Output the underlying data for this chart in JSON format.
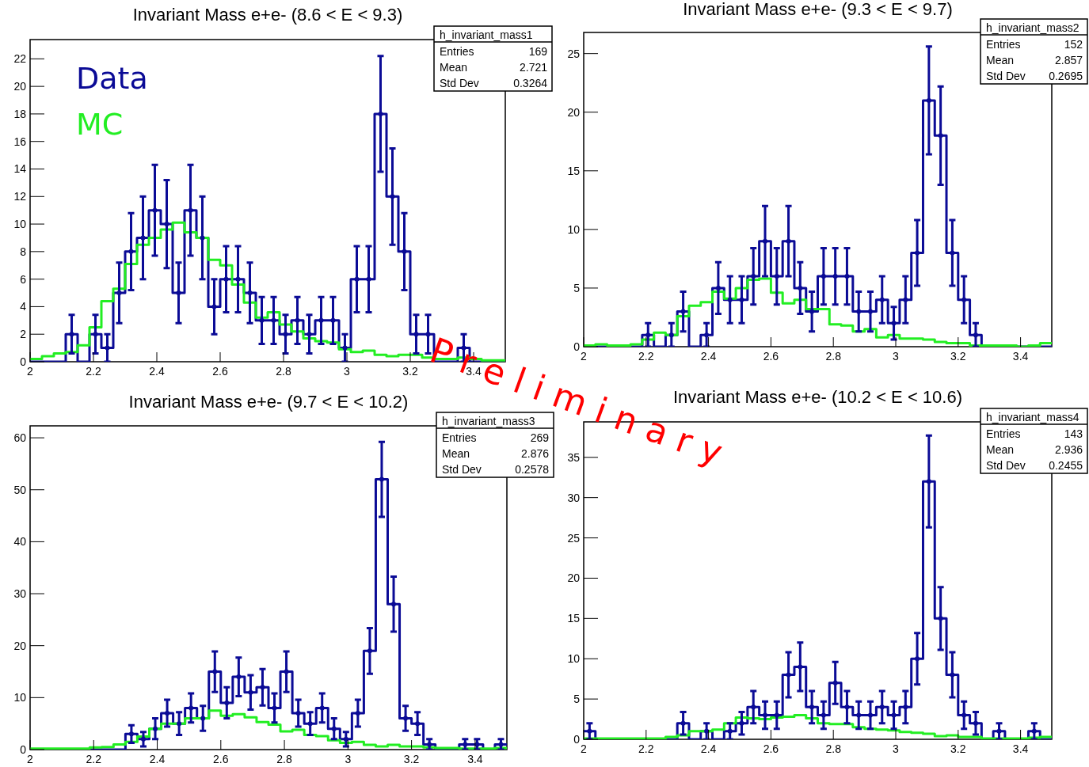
{
  "chart_data": [
    {
      "type": "histogram",
      "title": "Invariant Mass e+e- (8.6 < E < 9.3)",
      "bins": [
        2,
        2.0375,
        2.075,
        2.1125,
        2.15,
        2.1875,
        2.225,
        2.2625,
        2.3,
        2.3375,
        2.375,
        2.4125,
        2.45,
        2.4875,
        2.525,
        2.5625,
        2.6,
        2.6375,
        2.675,
        2.7125,
        2.75,
        2.7875,
        2.825,
        2.8625,
        2.9,
        2.9375,
        2.975,
        3.0125,
        3.05,
        3.0875,
        3.125,
        3.1625,
        3.2,
        3.2375,
        3.275,
        3.3125,
        3.35,
        3.3875,
        3.425,
        3.4625,
        3.5
      ],
      "xlim": [
        2,
        3.5
      ],
      "ylim": [
        0,
        23.4
      ],
      "xticks": [
        2,
        2.2,
        2.4,
        2.6,
        2.8,
        3,
        3.2,
        3.4
      ],
      "yticks": [
        0,
        2,
        4,
        6,
        8,
        10,
        12,
        14,
        16,
        18,
        20,
        22
      ],
      "legend": "top left",
      "series": [
        {
          "name": "Data",
          "color": "#0b0b96",
          "values": [
            0,
            0,
            0,
            2,
            0,
            2,
            1,
            5,
            8,
            9,
            11,
            10,
            5,
            11,
            9,
            4,
            6,
            6,
            5,
            3,
            3,
            2,
            3,
            2,
            3,
            3,
            1,
            6,
            6,
            18,
            12,
            8,
            2,
            2,
            0,
            0,
            1,
            0,
            0,
            0
          ]
        },
        {
          "type": "scatter",
          "color": "#0b0b96",
          "x": [
            2.13125,
            2.20625,
            2.24375,
            2.28125,
            2.31875,
            2.35625,
            2.39375,
            2.43125,
            2.46875,
            2.50625,
            2.54375,
            2.58125,
            2.61875,
            2.65625,
            2.69375,
            2.73125,
            2.76875,
            2.80625,
            2.84375,
            2.88125,
            2.91875,
            2.95625,
            2.99375,
            3.03125,
            3.06875,
            3.10625,
            3.14375,
            3.18125,
            3.21875,
            3.25625,
            3.36875
          ],
          "values": [
            2,
            2,
            1,
            5,
            8,
            9,
            11,
            10,
            5,
            11,
            9,
            4,
            6,
            6,
            5,
            3,
            3,
            2,
            3,
            2,
            3,
            3,
            1,
            6,
            6,
            18,
            12,
            8,
            2,
            2,
            1
          ],
          "errors": [
            1.4,
            1.4,
            1,
            2.2,
            2.8,
            3,
            3.3,
            3.2,
            2.2,
            3.3,
            3,
            2,
            2.4,
            2.4,
            2.2,
            1.7,
            1.7,
            1.4,
            1.7,
            1.4,
            1.7,
            1.7,
            1,
            2.4,
            2.4,
            4.2,
            3.5,
            2.8,
            1.4,
            1.4,
            1
          ]
        },
        {
          "name": "MC",
          "color": "#22ee22",
          "values": [
            0.2,
            0.4,
            0.6,
            0.7,
            1.2,
            2.5,
            4.4,
            5.3,
            7.1,
            8.5,
            9,
            9.6,
            10.1,
            9.4,
            9,
            7.4,
            7,
            5.6,
            4.3,
            3.2,
            3.6,
            2.7,
            2.2,
            1.7,
            1.5,
            1.4,
            0.9,
            0.7,
            0.8,
            0.5,
            0.4,
            0.5,
            0.5,
            0.3,
            0.2,
            0.2,
            0.3,
            0.2,
            0.1,
            0.1
          ]
        }
      ],
      "annotations": [
        "h_invariant_mass1",
        "Entries",
        "169",
        "Mean",
        "2.721",
        "Std Dev",
        "0.3264",
        "Preliminary"
      ]
    },
    {
      "type": "histogram",
      "title": "Invariant Mass e+e- (9.3 < E < 9.7)",
      "bins": [
        2,
        2.0375,
        2.075,
        2.1125,
        2.15,
        2.1875,
        2.225,
        2.2625,
        2.3,
        2.3375,
        2.375,
        2.4125,
        2.45,
        2.4875,
        2.525,
        2.5625,
        2.6,
        2.6375,
        2.675,
        2.7125,
        2.75,
        2.7875,
        2.825,
        2.8625,
        2.9,
        2.9375,
        2.975,
        3.0125,
        3.05,
        3.0875,
        3.125,
        3.1625,
        3.2,
        3.2375,
        3.275,
        3.3125,
        3.35,
        3.3875,
        3.425,
        3.4625,
        3.5
      ],
      "xlim": [
        2,
        3.5
      ],
      "ylim": [
        0,
        26.8
      ],
      "xticks": [
        2,
        2.2,
        2.4,
        2.6,
        2.8,
        3,
        3.2,
        3.4
      ],
      "yticks": [
        0,
        5,
        10,
        15,
        20,
        25
      ],
      "series": [
        {
          "color": "#0b0b96",
          "values": [
            0,
            0,
            0,
            0,
            0,
            1,
            0,
            1,
            3,
            0,
            1,
            5,
            4,
            4,
            6,
            9,
            6,
            9,
            5,
            3,
            6,
            6,
            6,
            3,
            3,
            4,
            2,
            4,
            8,
            21,
            18,
            8,
            4,
            1,
            0,
            0,
            0,
            0,
            0,
            0
          ]
        },
        {
          "type": "scatter",
          "color": "#0b0b96",
          "x": [
            2.20625,
            2.28125,
            2.31875,
            2.39375,
            2.43125,
            2.46875,
            2.50625,
            2.54375,
            2.58125,
            2.61875,
            2.65625,
            2.69375,
            2.73125,
            2.76875,
            2.80625,
            2.84375,
            2.88125,
            2.91875,
            2.95625,
            2.99375,
            3.03125,
            3.06875,
            3.10625,
            3.14375,
            3.18125,
            3.21875,
            3.25625
          ],
          "values": [
            1,
            1,
            3,
            1,
            5,
            4,
            4,
            6,
            9,
            6,
            9,
            5,
            3,
            6,
            6,
            6,
            3,
            3,
            4,
            2,
            4,
            8,
            21,
            18,
            8,
            4,
            1
          ],
          "errors": [
            1,
            1,
            1.7,
            1,
            2.2,
            2,
            2,
            2.4,
            3,
            2.4,
            3,
            2.2,
            1.7,
            2.4,
            2.4,
            2.4,
            1.7,
            1.7,
            2,
            1.4,
            2,
            2.8,
            4.6,
            4.2,
            2.8,
            2,
            1
          ]
        },
        {
          "color": "#22ee22",
          "values": [
            0.1,
            0.2,
            0.1,
            0.1,
            0.2,
            0.6,
            1.2,
            1,
            2.6,
            3.5,
            3.8,
            4.7,
            4.1,
            5,
            5.7,
            5.8,
            4.6,
            3.7,
            4,
            3.2,
            3.2,
            1.9,
            1.8,
            1.3,
            1.5,
            0.8,
            1,
            0.7,
            0.7,
            0.6,
            0.4,
            0.3,
            0.3,
            0.1,
            0.1,
            0.1,
            0.1,
            0,
            0.1,
            0.3
          ]
        }
      ],
      "annotations": [
        "h_invariant_mass2",
        "Entries",
        "152",
        "Mean",
        "2.857",
        "Std Dev",
        "0.2695"
      ]
    },
    {
      "type": "histogram",
      "title": "Invariant Mass e+e- (9.7 < E < 10.2)",
      "bins": [
        2,
        2.0375,
        2.075,
        2.1125,
        2.15,
        2.1875,
        2.225,
        2.2625,
        2.3,
        2.3375,
        2.375,
        2.4125,
        2.45,
        2.4875,
        2.525,
        2.5625,
        2.6,
        2.6375,
        2.675,
        2.7125,
        2.75,
        2.7875,
        2.825,
        2.8625,
        2.9,
        2.9375,
        2.975,
        3.0125,
        3.05,
        3.0875,
        3.125,
        3.1625,
        3.2,
        3.2375,
        3.275,
        3.3125,
        3.35,
        3.3875,
        3.425,
        3.4625,
        3.5
      ],
      "xlim": [
        2,
        3.5
      ],
      "ylim": [
        0,
        62.3
      ],
      "xticks": [
        2,
        2.2,
        2.4,
        2.6,
        2.8,
        3,
        3.2,
        3.4
      ],
      "yticks": [
        0,
        10,
        20,
        30,
        40,
        50,
        60
      ],
      "series": [
        {
          "color": "#0b0b96",
          "values": [
            0,
            0,
            0,
            0,
            0,
            0,
            0,
            0,
            3,
            2,
            4,
            7,
            5,
            8,
            6,
            15,
            9,
            14,
            11,
            12,
            8,
            15,
            7,
            5,
            8,
            4,
            2,
            7,
            19,
            52,
            28,
            6,
            5,
            1,
            0,
            0,
            1,
            1,
            0,
            1
          ]
        },
        {
          "type": "scatter",
          "color": "#0b0b96",
          "x": [
            2.31875,
            2.35625,
            2.39375,
            2.43125,
            2.46875,
            2.50625,
            2.54375,
            2.58125,
            2.61875,
            2.65625,
            2.69375,
            2.73125,
            2.76875,
            2.80625,
            2.84375,
            2.88125,
            2.91875,
            2.95625,
            2.99375,
            3.03125,
            3.06875,
            3.10625,
            3.14375,
            3.18125,
            3.21875,
            3.25625,
            3.36875,
            3.40625,
            3.48125
          ],
          "values": [
            3,
            2,
            4,
            7,
            5,
            8,
            6,
            15,
            9,
            14,
            11,
            12,
            8,
            15,
            7,
            5,
            8,
            4,
            2,
            7,
            19,
            52,
            28,
            6,
            5,
            1,
            1,
            1,
            1
          ],
          "errors": [
            1.7,
            1.4,
            2,
            2.6,
            2.2,
            2.8,
            2.4,
            3.9,
            3,
            3.7,
            3.3,
            3.5,
            2.8,
            3.9,
            2.6,
            2.2,
            2.8,
            2,
            1.4,
            2.6,
            4.4,
            7.2,
            5.3,
            2.4,
            2.2,
            1,
            1,
            1,
            1
          ]
        },
        {
          "color": "#22ee22",
          "values": [
            0.2,
            0.2,
            0.2,
            0.2,
            0.2,
            0.4,
            0.5,
            1,
            1.5,
            2.5,
            4,
            5,
            5,
            6,
            6,
            7.5,
            6.5,
            6.8,
            6.2,
            5.3,
            4.8,
            3.5,
            3.8,
            2.8,
            2.6,
            1.8,
            1.3,
            1.5,
            0.9,
            0.6,
            0.9,
            0.6,
            0.6,
            0.4,
            0.3,
            0.3,
            0.2,
            0.2,
            0.2,
            0.3
          ]
        }
      ],
      "annotations": [
        "h_invariant_mass3",
        "Entries",
        "269",
        "Mean",
        "2.876",
        "Std Dev",
        "0.2578"
      ]
    },
    {
      "type": "histogram",
      "title": "Invariant Mass e+e- (10.2 < E < 10.6)",
      "bins": [
        2,
        2.0375,
        2.075,
        2.1125,
        2.15,
        2.1875,
        2.225,
        2.2625,
        2.3,
        2.3375,
        2.375,
        2.4125,
        2.45,
        2.4875,
        2.525,
        2.5625,
        2.6,
        2.6375,
        2.675,
        2.7125,
        2.75,
        2.7875,
        2.825,
        2.8625,
        2.9,
        2.9375,
        2.975,
        3.0125,
        3.05,
        3.0875,
        3.125,
        3.1625,
        3.2,
        3.2375,
        3.275,
        3.3125,
        3.35,
        3.3875,
        3.425,
        3.4625,
        3.5
      ],
      "xlim": [
        2,
        3.5
      ],
      "ylim": [
        0,
        39.4
      ],
      "xticks": [
        2,
        2.2,
        2.4,
        2.6,
        2.8,
        3,
        3.2,
        3.4
      ],
      "yticks": [
        0,
        5,
        10,
        15,
        20,
        25,
        30,
        35
      ],
      "series": [
        {
          "color": "#0b0b96",
          "values": [
            1,
            0,
            0,
            0,
            0,
            0,
            0,
            0,
            2,
            0,
            1,
            0,
            1,
            2,
            4,
            3,
            3,
            8,
            9,
            4,
            3,
            7,
            4,
            3,
            3,
            4,
            3,
            4,
            10,
            32,
            15,
            8,
            3,
            2,
            0,
            1,
            0,
            0,
            1,
            0
          ]
        },
        {
          "type": "scatter",
          "color": "#0b0b96",
          "x": [
            2.01875,
            2.31875,
            2.39375,
            2.46875,
            2.50625,
            2.54375,
            2.58125,
            2.61875,
            2.65625,
            2.69375,
            2.73125,
            2.76875,
            2.80625,
            2.84375,
            2.88125,
            2.91875,
            2.95625,
            2.99375,
            3.03125,
            3.06875,
            3.10625,
            3.14375,
            3.18125,
            3.21875,
            3.25625,
            3.33125,
            3.44375
          ],
          "values": [
            1,
            2,
            1,
            1,
            2,
            4,
            3,
            3,
            8,
            9,
            4,
            3,
            7,
            4,
            3,
            3,
            4,
            3,
            4,
            10,
            32,
            15,
            8,
            3,
            2,
            1,
            1
          ],
          "errors": [
            1,
            1.4,
            1,
            1,
            1.4,
            2,
            1.7,
            1.7,
            2.8,
            3,
            2,
            1.7,
            2.6,
            2,
            1.7,
            1.7,
            2,
            1.7,
            2,
            3.2,
            5.7,
            3.9,
            2.8,
            1.7,
            1.4,
            1,
            1
          ]
        },
        {
          "color": "#22ee22",
          "values": [
            0.1,
            0.1,
            0.1,
            0.1,
            0.1,
            0.1,
            0.1,
            0.3,
            0.5,
            1,
            1,
            1.2,
            2,
            2.7,
            2.6,
            2.5,
            2.7,
            2.8,
            3,
            2.6,
            2,
            1.9,
            1.9,
            1.5,
            1.3,
            1.2,
            1.1,
            0.9,
            0.8,
            0.7,
            0.4,
            0.5,
            0.3,
            0.3,
            0.1,
            0.1,
            0.1,
            0.1,
            0.2,
            0.3
          ]
        }
      ],
      "annotations": [
        "h_invariant_mass4",
        "Entries",
        "143",
        "Mean",
        "2.936",
        "Std Dev",
        "0.2455"
      ]
    }
  ]
}
